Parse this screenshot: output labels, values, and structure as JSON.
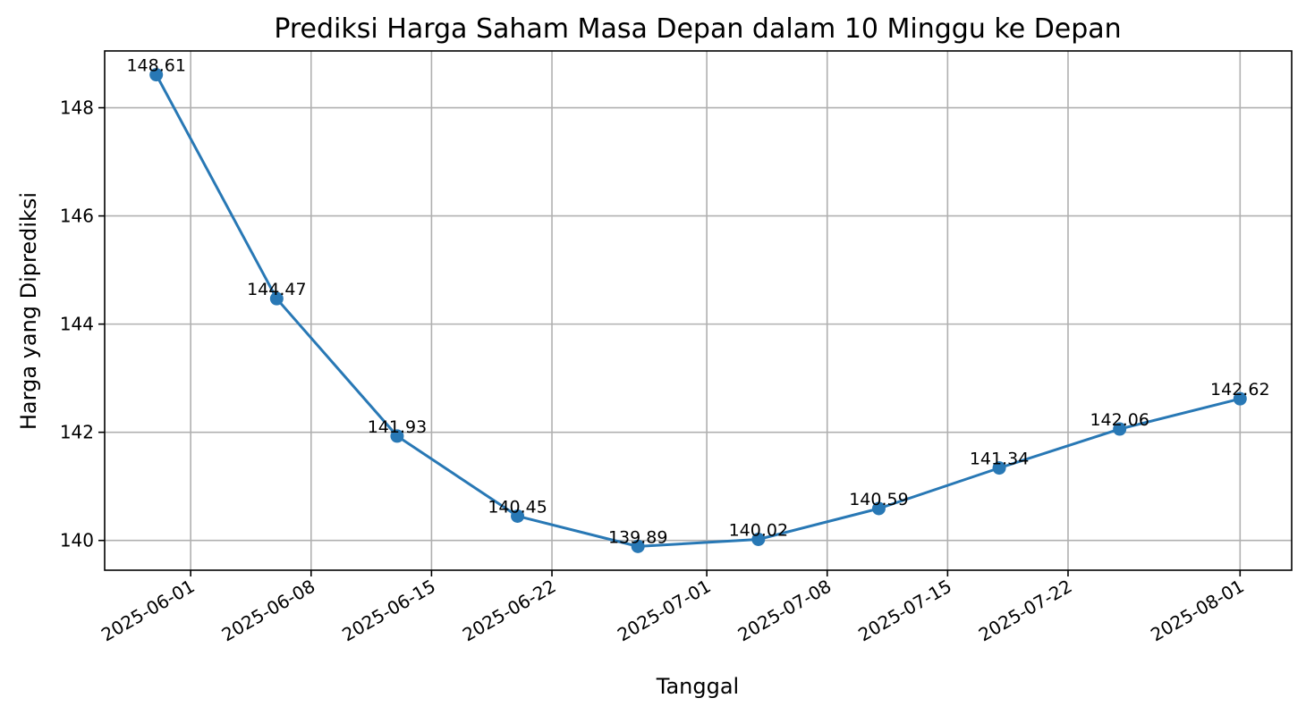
{
  "chart_data": {
    "type": "line",
    "title": "Prediksi Harga Saham Masa Depan dalam 10 Minggu ke Depan",
    "xlabel": "Tanggal",
    "ylabel": "Harga yang Diprediksi",
    "x": [
      "2025-05-30",
      "2025-06-06",
      "2025-06-13",
      "2025-06-20",
      "2025-06-27",
      "2025-07-04",
      "2025-07-11",
      "2025-07-18",
      "2025-07-25",
      "2025-08-01"
    ],
    "series": [
      {
        "values": [
          148.61,
          144.47,
          141.93,
          140.45,
          139.89,
          140.02,
          140.59,
          141.34,
          142.06,
          142.62
        ]
      }
    ],
    "data_labels": [
      "148.61",
      "144.47",
      "141.93",
      "140.45",
      "139.89",
      "140.02",
      "140.59",
      "141.34",
      "142.06",
      "142.62"
    ],
    "x_ticks": [
      "2025-06-01",
      "2025-06-08",
      "2025-06-15",
      "2025-06-22",
      "2025-07-01",
      "2025-07-08",
      "2025-07-15",
      "2025-07-22",
      "2025-08-01"
    ],
    "x_tick_labels": [
      "2025-06-01",
      "2025-06-08",
      "2025-06-15",
      "2025-06-22",
      "2025-07-01",
      "2025-07-08",
      "2025-07-15",
      "2025-07-22",
      "2025-08-01"
    ],
    "y_ticks": [
      140,
      142,
      144,
      146,
      148
    ],
    "y_tick_labels": [
      "140",
      "142",
      "144",
      "146",
      "148"
    ],
    "xlim": [
      "2025-05-27",
      "2025-08-04"
    ],
    "ylim": [
      139.45,
      149.05
    ],
    "grid": true,
    "line_color": "#2878b5"
  }
}
